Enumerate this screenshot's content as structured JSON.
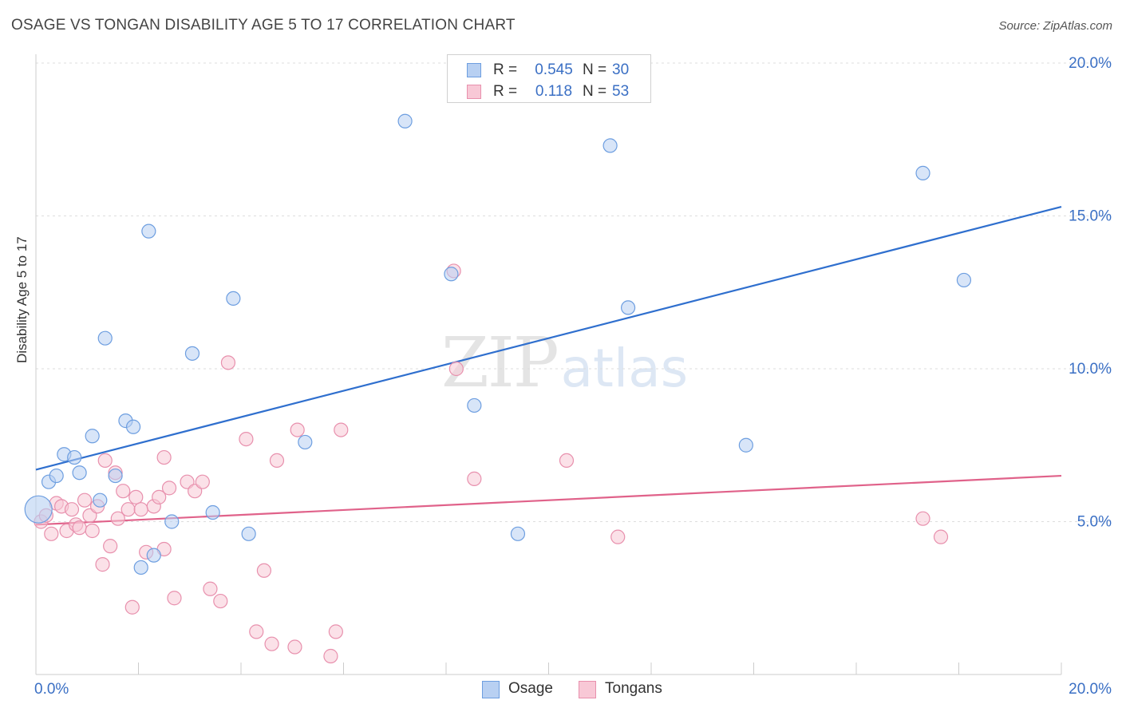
{
  "header": {
    "title": "OSAGE VS TONGAN DISABILITY AGE 5 TO 17 CORRELATION CHART",
    "source": "Source: ZipAtlas.com"
  },
  "watermark": {
    "zip": "ZIP",
    "atlas": "atlas"
  },
  "legend": {
    "osage": {
      "r_label": "R =",
      "r_value": "0.545",
      "n_label": "N =",
      "n_value": "30"
    },
    "tongans": {
      "r_label": "R =",
      "r_value": "0.118",
      "n_label": "N =",
      "n_value": "53"
    }
  },
  "bottom_legend": {
    "osage": "Osage",
    "tongans": "Tongans"
  },
  "colors": {
    "osage_fill": "#b8d0f2",
    "osage_stroke": "#6d9ee0",
    "osage_line": "#2f6fce",
    "tongans_fill": "#f8c8d6",
    "tongans_stroke": "#e890ad",
    "tongans_line": "#e0628a",
    "tick_label": "#3a6fc4",
    "grid": "#dddddd"
  },
  "chart_data": {
    "type": "scatter",
    "title": "OSAGE VS TONGAN DISABILITY AGE 5 TO 17 CORRELATION CHART",
    "xlabel": "",
    "ylabel": "Disability Age 5 to 17",
    "xlim": [
      0,
      20
    ],
    "ylim": [
      0,
      20
    ],
    "x_tick_labels": [
      "0.0%",
      "20.0%"
    ],
    "y_ticks": [
      {
        "value": 5,
        "label": "5.0%"
      },
      {
        "value": 10,
        "label": "10.0%"
      },
      {
        "value": 15,
        "label": "15.0%"
      },
      {
        "value": 20,
        "label": "20.0%"
      }
    ],
    "series": [
      {
        "name": "Osage",
        "r": 0.545,
        "n": 30,
        "trend": {
          "x": [
            0,
            20
          ],
          "y": [
            6.7,
            15.3
          ]
        },
        "points": [
          {
            "x": 0.05,
            "y": 5.4,
            "big": true
          },
          {
            "x": 0.25,
            "y": 6.3
          },
          {
            "x": 0.4,
            "y": 6.5
          },
          {
            "x": 0.55,
            "y": 7.2
          },
          {
            "x": 0.75,
            "y": 7.1
          },
          {
            "x": 0.85,
            "y": 6.6
          },
          {
            "x": 1.1,
            "y": 7.8
          },
          {
            "x": 1.25,
            "y": 5.7
          },
          {
            "x": 1.35,
            "y": 11.0
          },
          {
            "x": 1.55,
            "y": 6.5
          },
          {
            "x": 1.75,
            "y": 8.3
          },
          {
            "x": 1.9,
            "y": 8.1
          },
          {
            "x": 2.05,
            "y": 3.5
          },
          {
            "x": 2.2,
            "y": 14.5
          },
          {
            "x": 2.3,
            "y": 3.9
          },
          {
            "x": 2.65,
            "y": 5.0
          },
          {
            "x": 3.05,
            "y": 10.5
          },
          {
            "x": 3.45,
            "y": 5.3
          },
          {
            "x": 3.85,
            "y": 12.3
          },
          {
            "x": 4.15,
            "y": 4.6
          },
          {
            "x": 5.25,
            "y": 7.6
          },
          {
            "x": 7.2,
            "y": 18.1
          },
          {
            "x": 8.1,
            "y": 13.1
          },
          {
            "x": 8.55,
            "y": 8.8
          },
          {
            "x": 9.4,
            "y": 4.6
          },
          {
            "x": 11.2,
            "y": 17.3
          },
          {
            "x": 11.55,
            "y": 12.0
          },
          {
            "x": 13.85,
            "y": 7.5
          },
          {
            "x": 17.3,
            "y": 16.4
          },
          {
            "x": 18.1,
            "y": 12.9
          }
        ]
      },
      {
        "name": "Tongans",
        "r": 0.118,
        "n": 53,
        "trend": {
          "x": [
            0,
            20
          ],
          "y": [
            4.9,
            6.5
          ]
        },
        "points": [
          {
            "x": 0.1,
            "y": 5.0
          },
          {
            "x": 0.2,
            "y": 5.2
          },
          {
            "x": 0.3,
            "y": 4.6
          },
          {
            "x": 0.4,
            "y": 5.6
          },
          {
            "x": 0.5,
            "y": 5.5
          },
          {
            "x": 0.6,
            "y": 4.7
          },
          {
            "x": 0.7,
            "y": 5.4
          },
          {
            "x": 0.78,
            "y": 4.9
          },
          {
            "x": 0.85,
            "y": 4.8
          },
          {
            "x": 0.95,
            "y": 5.7
          },
          {
            "x": 1.05,
            "y": 5.2
          },
          {
            "x": 1.1,
            "y": 4.7
          },
          {
            "x": 1.2,
            "y": 5.5
          },
          {
            "x": 1.3,
            "y": 3.6
          },
          {
            "x": 1.35,
            "y": 7.0
          },
          {
            "x": 1.45,
            "y": 4.2
          },
          {
            "x": 1.55,
            "y": 6.6
          },
          {
            "x": 1.6,
            "y": 5.1
          },
          {
            "x": 1.7,
            "y": 6.0
          },
          {
            "x": 1.8,
            "y": 5.4
          },
          {
            "x": 1.88,
            "y": 2.2
          },
          {
            "x": 1.95,
            "y": 5.8
          },
          {
            "x": 2.05,
            "y": 5.4
          },
          {
            "x": 2.15,
            "y": 4.0
          },
          {
            "x": 2.3,
            "y": 5.5
          },
          {
            "x": 2.4,
            "y": 5.8
          },
          {
            "x": 2.5,
            "y": 7.1
          },
          {
            "x": 2.5,
            "y": 4.1
          },
          {
            "x": 2.6,
            "y": 6.1
          },
          {
            "x": 2.7,
            "y": 2.5
          },
          {
            "x": 2.95,
            "y": 6.3
          },
          {
            "x": 3.1,
            "y": 6.0
          },
          {
            "x": 3.25,
            "y": 6.3
          },
          {
            "x": 3.4,
            "y": 2.8
          },
          {
            "x": 3.6,
            "y": 2.4
          },
          {
            "x": 3.75,
            "y": 10.2
          },
          {
            "x": 4.1,
            "y": 7.7
          },
          {
            "x": 4.3,
            "y": 1.4
          },
          {
            "x": 4.45,
            "y": 3.4
          },
          {
            "x": 4.6,
            "y": 1.0
          },
          {
            "x": 4.7,
            "y": 7.0
          },
          {
            "x": 5.05,
            "y": 0.9
          },
          {
            "x": 5.1,
            "y": 8.0
          },
          {
            "x": 5.75,
            "y": 0.6
          },
          {
            "x": 5.85,
            "y": 1.4
          },
          {
            "x": 5.95,
            "y": 8.0
          },
          {
            "x": 8.15,
            "y": 13.2
          },
          {
            "x": 8.2,
            "y": 10.0
          },
          {
            "x": 8.55,
            "y": 6.4
          },
          {
            "x": 10.35,
            "y": 7.0
          },
          {
            "x": 11.35,
            "y": 4.5
          },
          {
            "x": 17.3,
            "y": 5.1
          },
          {
            "x": 17.65,
            "y": 4.5
          }
        ]
      }
    ]
  }
}
